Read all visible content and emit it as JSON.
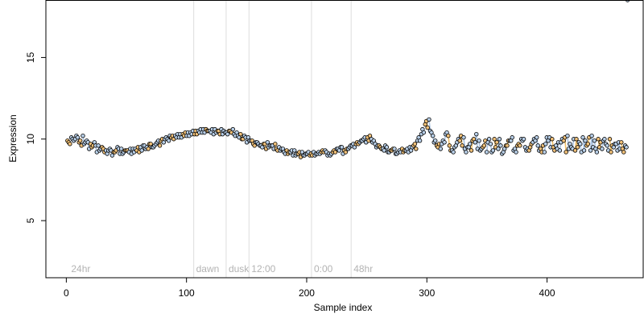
{
  "chart_data": {
    "type": "scatter",
    "xlabel": "Sample index",
    "ylabel": "Expression",
    "xlim": [
      -17,
      480
    ],
    "ylim": [
      1.5,
      18.5
    ],
    "xticks": [
      0,
      100,
      200,
      300,
      400
    ],
    "yticks": [
      5,
      10,
      15
    ],
    "grid": false,
    "time_markers": [
      {
        "x": 2,
        "label": "24hr"
      },
      {
        "x": 106,
        "label": "dawn"
      },
      {
        "x": 133,
        "label": "dusk"
      },
      {
        "x": 152,
        "label": "12:00"
      },
      {
        "x": 204,
        "label": "0:00"
      },
      {
        "x": 237,
        "label": "48hr"
      }
    ],
    "colors": {
      "point_a": "#f0c078",
      "point_b": "#b8cfe8",
      "link_a": "#e8a838",
      "link_b": "#8fb0d8",
      "marker_line": "#dddddd",
      "marker_text": "#b3b3b3"
    },
    "series": [
      {
        "values": [
          9.9,
          10.1,
          10.0,
          9.8,
          10.2,
          9.9,
          9.7,
          9.8,
          9.6,
          9.5,
          9.3,
          9.4,
          9.2,
          9.5,
          9.4,
          9.3,
          9.2,
          9.4,
          9.3,
          9.5,
          9.6,
          9.4,
          9.5,
          9.7,
          9.6,
          9.8,
          10.0,
          10.1,
          10.2,
          10.1,
          10.3,
          10.2,
          10.4,
          10.3,
          10.5,
          10.4,
          10.6,
          10.5,
          10.3,
          10.5,
          10.6,
          10.4,
          10.5,
          10.6,
          10.4,
          10.3,
          10.2,
          10.1,
          9.9,
          9.8,
          9.6,
          9.7,
          9.8,
          9.6,
          9.7,
          9.5,
          9.4,
          9.3,
          9.2,
          9.3,
          9.1,
          9.2,
          9.1,
          9.0,
          9.2,
          9.1,
          9.2,
          9.3,
          9.1,
          9.2,
          9.4,
          9.5,
          9.3,
          9.4,
          9.6,
          9.7,
          9.8,
          10.0,
          10.1,
          10.0,
          9.7,
          9.6,
          9.4,
          9.5,
          9.3,
          9.4,
          9.2,
          9.4,
          9.3,
          9.5,
          9.6,
          9.9,
          10.3,
          10.9,
          11.2,
          10.2,
          9.6,
          9.4,
          9.8,
          10.2,
          9.3,
          9.6,
          9.9,
          10.1,
          9.5,
          9.3,
          9.8,
          9.9,
          9.5,
          9.2,
          9.7,
          10.0,
          9.4,
          9.1,
          9.6,
          9.9,
          9.3,
          9.6,
          10.0,
          9.5,
          9.3,
          9.8,
          10.1,
          9.4,
          9.2,
          9.9,
          10.0,
          9.6,
          9.3,
          9.9,
          10.2,
          9.5,
          9.3,
          9.8,
          10.1,
          9.6,
          9.3,
          9.9,
          10.0,
          9.4,
          9.7,
          10.0,
          9.5,
          9.3,
          9.8,
          9.6
        ]
      },
      {
        "values": [
          9.8,
          10.0,
          10.2,
          9.9,
          9.7,
          9.8,
          9.5,
          9.6,
          9.3,
          9.4,
          9.1,
          9.3,
          9.2,
          9.4,
          9.1,
          9.3,
          9.4,
          9.2,
          9.5,
          9.3,
          9.4,
          9.7,
          9.5,
          9.8,
          9.9,
          10.0,
          9.9,
          10.2,
          10.1,
          10.3,
          10.2,
          10.4,
          10.3,
          10.5,
          10.4,
          10.6,
          10.5,
          10.4,
          10.6,
          10.5,
          10.3,
          10.4,
          10.5,
          10.3,
          10.2,
          10.0,
          10.1,
          9.9,
          9.7,
          9.8,
          9.6,
          9.7,
          9.5,
          9.6,
          9.4,
          9.3,
          9.2,
          9.1,
          9.3,
          9.0,
          9.2,
          9.0,
          9.1,
          9.1,
          9.0,
          9.2,
          9.3,
          9.2,
          9.0,
          9.3,
          9.4,
          9.5,
          9.2,
          9.5,
          9.7,
          9.8,
          9.9,
          10.1,
          9.9,
          9.8,
          9.5,
          9.5,
          9.3,
          9.2,
          9.3,
          9.1,
          9.3,
          9.2,
          9.4,
          9.3,
          9.7,
          10.1,
          10.6,
          11.1,
          10.5,
          9.8,
          9.5,
          9.7,
          10.3,
          9.6,
          9.2,
          9.8,
          10.2,
          9.4,
          9.5,
          9.9,
          10.3,
          9.3,
          9.6,
          9.8,
          9.2,
          9.5,
          10.0,
          9.2,
          9.6,
          9.9,
          9.4,
          9.7,
          9.9,
          9.3,
          9.5,
          10.0,
          9.6,
          9.2,
          9.7,
          10.1,
          9.5,
          9.4,
          9.8,
          10.1,
          9.4,
          9.4,
          10.0,
          9.7,
          9.3,
          9.7,
          10.2,
          9.4,
          9.5,
          9.9,
          9.6,
          9.2,
          9.7,
          9.8,
          9.4,
          9.5
        ]
      },
      {
        "values": [
          9.7,
          9.9,
          10.1,
          9.6,
          9.8,
          9.4,
          9.6,
          9.2,
          9.4,
          9.2,
          9.3,
          9.0,
          9.3,
          9.1,
          9.2,
          9.3,
          9.1,
          9.4,
          9.2,
          9.6,
          9.5,
          9.7,
          9.6,
          9.9,
          10.0,
          10.1,
          10.2,
          10.0,
          10.3,
          10.1,
          10.4,
          10.2,
          10.5,
          10.3,
          10.6,
          10.4,
          10.5,
          10.6,
          10.4,
          10.3,
          10.5,
          10.3,
          10.4,
          10.2,
          10.1,
          10.0,
          9.8,
          9.9,
          9.6,
          9.7,
          9.5,
          9.4,
          9.6,
          9.4,
          9.3,
          9.4,
          9.1,
          9.2,
          9.0,
          9.1,
          8.9,
          9.0,
          9.2,
          9.0,
          9.1,
          9.1,
          9.2,
          9.0,
          9.1,
          9.2,
          9.3,
          9.1,
          9.4,
          9.6,
          9.5,
          9.7,
          9.9,
          9.8,
          10.2,
          9.9,
          9.6,
          9.4,
          9.6,
          9.2,
          9.4,
          9.1,
          9.2,
          9.3,
          9.2,
          9.5,
          9.4,
          9.9,
          10.4,
          10.7,
          10.4,
          9.9,
          9.7,
          9.9,
          10.4,
          9.3,
          9.5,
          10.0,
          9.6,
          9.2,
          9.7,
          10.0,
          9.4,
          9.4,
          9.9,
          10.0,
          9.3,
          9.8,
          9.6,
          9.4,
          9.9,
          10.1,
          9.2,
          9.6,
          10.0,
          9.4,
          9.7,
          9.9,
          9.3,
          9.6,
          10.1,
          9.5,
          9.3,
          9.8,
          10.0,
          9.2,
          9.7,
          10.0,
          9.5,
          9.2,
          9.9,
          10.1,
          9.5,
          9.2,
          9.8,
          10.0,
          9.3,
          9.6,
          9.7,
          9.4,
          9.2
        ]
      }
    ]
  }
}
